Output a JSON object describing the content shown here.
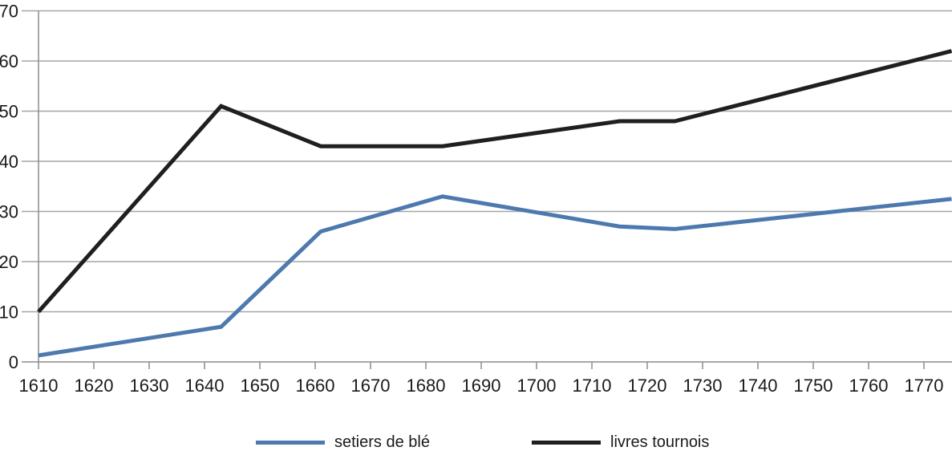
{
  "chart_data": {
    "type": "line",
    "title": "",
    "xlabel": "",
    "ylabel": "",
    "x": [
      1610,
      1643,
      1661,
      1683,
      1715,
      1725,
      1775
    ],
    "series": [
      {
        "name": "setiers de blé",
        "color": "#4d79ae",
        "values": [
          1.3,
          7,
          26,
          33,
          27,
          26.5,
          32.5
        ]
      },
      {
        "name": "livres tournois",
        "color": "#1f1f1f",
        "values": [
          10,
          51,
          43,
          43,
          48,
          48,
          62
        ]
      }
    ],
    "xlim": [
      1610,
      1775
    ],
    "ylim": [
      0,
      70
    ],
    "x_ticks": [
      1610,
      1620,
      1630,
      1640,
      1650,
      1660,
      1670,
      1680,
      1690,
      1700,
      1710,
      1720,
      1730,
      1740,
      1750,
      1760,
      1770
    ],
    "y_ticks": [
      0,
      10,
      20,
      30,
      40,
      50,
      60,
      70
    ],
    "grid": "horizontal",
    "legend_position": "bottom",
    "colors": {
      "axis": "#8c8c8c",
      "gridline": "#a6a6a6",
      "text": "#1a1a1a",
      "background": "#ffffff"
    }
  }
}
